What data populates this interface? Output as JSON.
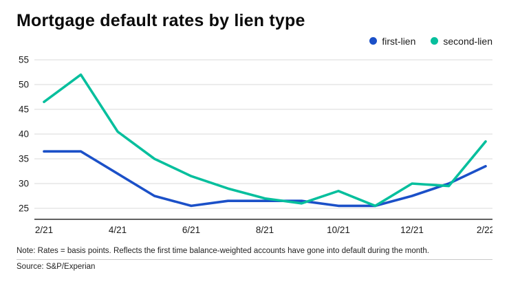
{
  "title": "Mortgage default rates by lien type",
  "legend": [
    {
      "label": "first-lien",
      "color": "#1b50c8"
    },
    {
      "label": "second-lien",
      "color": "#06bf9d"
    }
  ],
  "chart_data": {
    "type": "line",
    "title": "Mortgage default rates by lien type",
    "x": [
      "2/21",
      "3/21",
      "4/21",
      "5/21",
      "6/21",
      "7/21",
      "8/21",
      "9/21",
      "10/21",
      "11/21",
      "12/21",
      "1/22",
      "2/22"
    ],
    "x_tick_labels": [
      "2/21",
      "4/21",
      "6/21",
      "8/21",
      "10/21",
      "12/21",
      "2/22"
    ],
    "yticks": [
      25,
      30,
      35,
      40,
      45,
      50,
      55
    ],
    "ylim": [
      25,
      55
    ],
    "grid": "horizontal",
    "legend_position": "top-right",
    "grid_color": "#d8d8d8",
    "axis_color": "#000000",
    "series": [
      {
        "name": "first-lien",
        "color": "#1b50c8",
        "values": [
          36.5,
          36.5,
          32,
          27.5,
          25.5,
          26.5,
          26.5,
          26.5,
          25.5,
          25.5,
          27.5,
          30,
          33.5
        ]
      },
      {
        "name": "second-lien",
        "color": "#06bf9d",
        "values": [
          46.5,
          52,
          40.5,
          35,
          31.5,
          29,
          27,
          26,
          28.5,
          25.5,
          30,
          29.5,
          38.5
        ]
      }
    ],
    "unit": "basis points"
  },
  "note": "Note: Rates = basis points. Reflects the first time balance-weighted accounts have gone into default during the month.",
  "source": "Source: S&P/Experian"
}
